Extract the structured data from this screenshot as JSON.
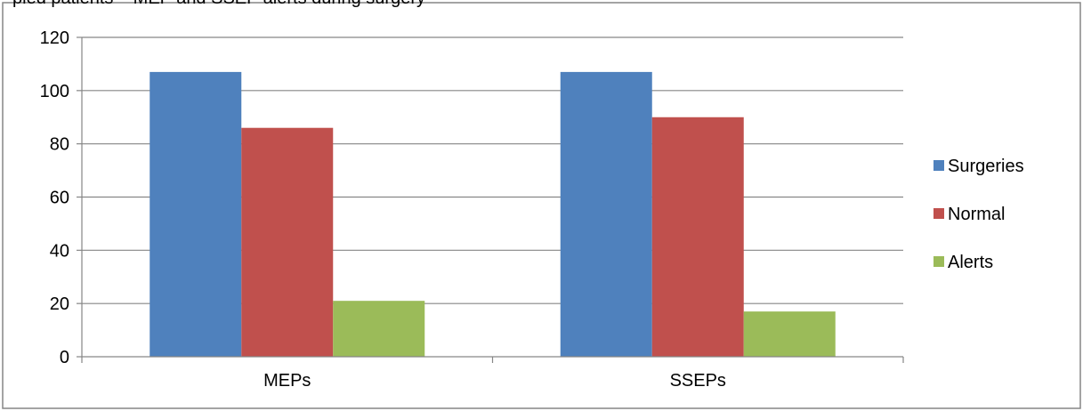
{
  "partial_caption": "pled patients – MEP and SSEP alerts during surgery",
  "chart_data": {
    "type": "bar",
    "categories": [
      "MEPs",
      "SSEPs"
    ],
    "series": [
      {
        "name": "Surgeries",
        "color": "#4f81bd",
        "values": [
          107,
          107
        ]
      },
      {
        "name": "Normal",
        "color": "#c0504d",
        "values": [
          86,
          90
        ]
      },
      {
        "name": "Alerts",
        "color": "#9bbb59",
        "values": [
          21,
          17
        ]
      }
    ],
    "yticks": [
      "0",
      "20",
      "40",
      "60",
      "80",
      "100",
      "120"
    ],
    "ylim": [
      0,
      120
    ],
    "grid": true,
    "legend_position": "right"
  }
}
